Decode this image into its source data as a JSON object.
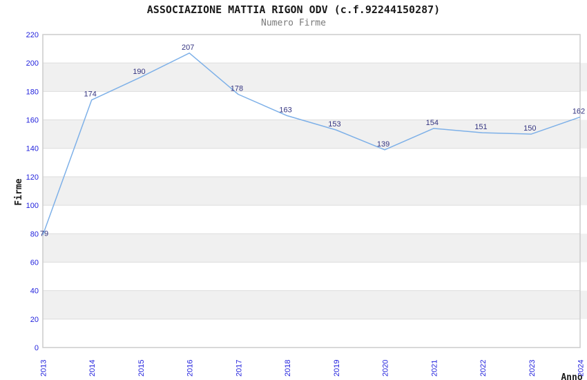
{
  "header": {
    "title": "ASSOCIAZIONE MATTIA RIGON ODV (c.f.92244150287)",
    "subtitle": "Numero Firme"
  },
  "chart_data": {
    "type": "line",
    "title": "ASSOCIAZIONE MATTIA RIGON ODV (c.f.92244150287)",
    "subtitle": "Numero Firme",
    "xlabel": "Anno",
    "ylabel": "Firme",
    "categories": [
      "2013",
      "2014",
      "2015",
      "2016",
      "2017",
      "2018",
      "2019",
      "2020",
      "2021",
      "2022",
      "2023",
      "2024"
    ],
    "values": [
      79,
      174,
      190,
      207,
      178,
      163,
      153,
      139,
      154,
      151,
      150,
      162
    ],
    "ylim": [
      0,
      220
    ],
    "ytick_step": 20,
    "grid": true,
    "legend_position": "none",
    "band_pattern": "alternating-horizontal",
    "style": {
      "line_color": "#7db0e8",
      "tick_label_color": "#2222dd",
      "value_label_color": "#333380",
      "band_color": "#f0f0f0",
      "grid_color": "#dddddd",
      "border_color": "#cccccc",
      "title_color": "#1a1a1a",
      "subtitle_color": "#7a7a7a",
      "axis_title_color": "#1a1a1a"
    }
  }
}
